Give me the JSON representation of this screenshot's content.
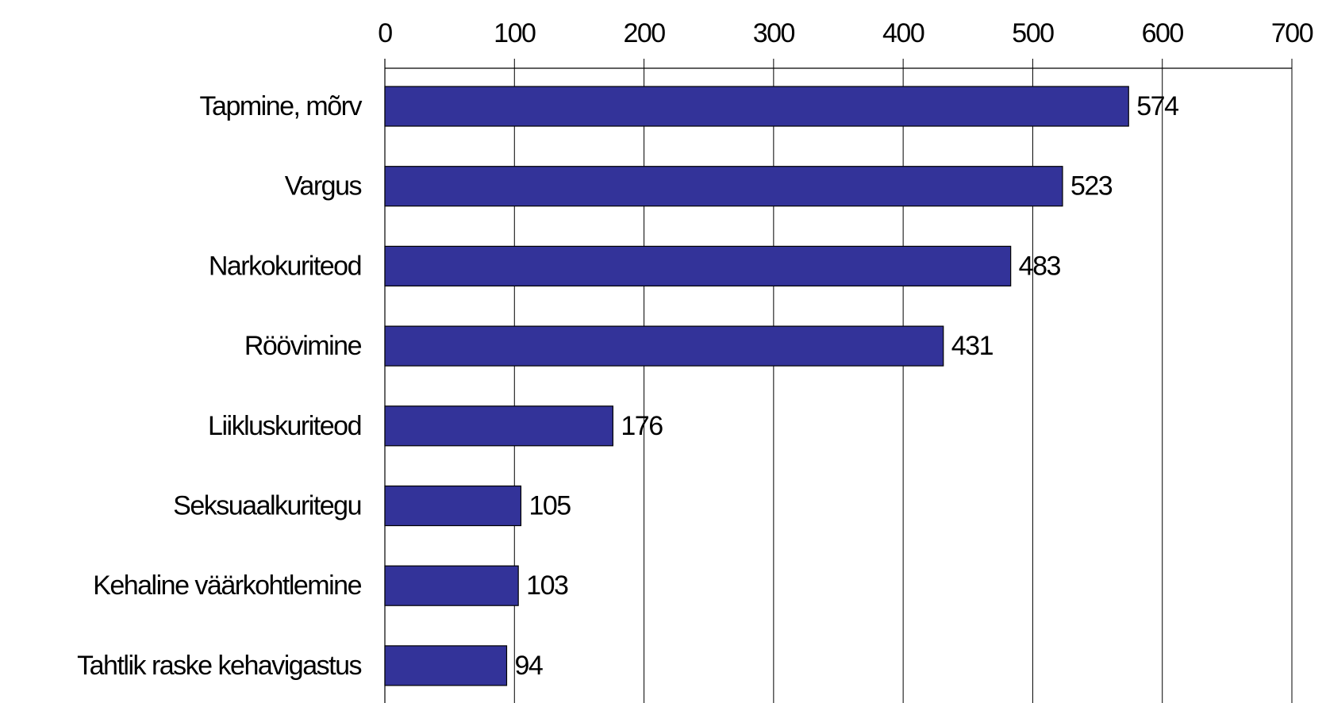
{
  "chart_data": {
    "type": "bar",
    "orientation": "horizontal",
    "categories": [
      "Tapmine, mõrv",
      "Vargus",
      "Narkokuriteod",
      "Röövimine",
      "Liikluskuriteod",
      "Seksuaalkuritegu",
      "Kehaline väärkohtlemine",
      "Tahtlik raske kehavigastus"
    ],
    "values": [
      574,
      523,
      483,
      431,
      176,
      105,
      103,
      94
    ],
    "title": "",
    "xlabel": "",
    "ylabel": "",
    "xlim": [
      0,
      700
    ],
    "xticks": [
      0,
      100,
      200,
      300,
      400,
      500,
      600,
      700
    ],
    "x_axis_position": "top",
    "grid": true,
    "legend": "none",
    "data_labels": true,
    "bar_color": "#333399",
    "bar_edge_color": "#000000"
  }
}
